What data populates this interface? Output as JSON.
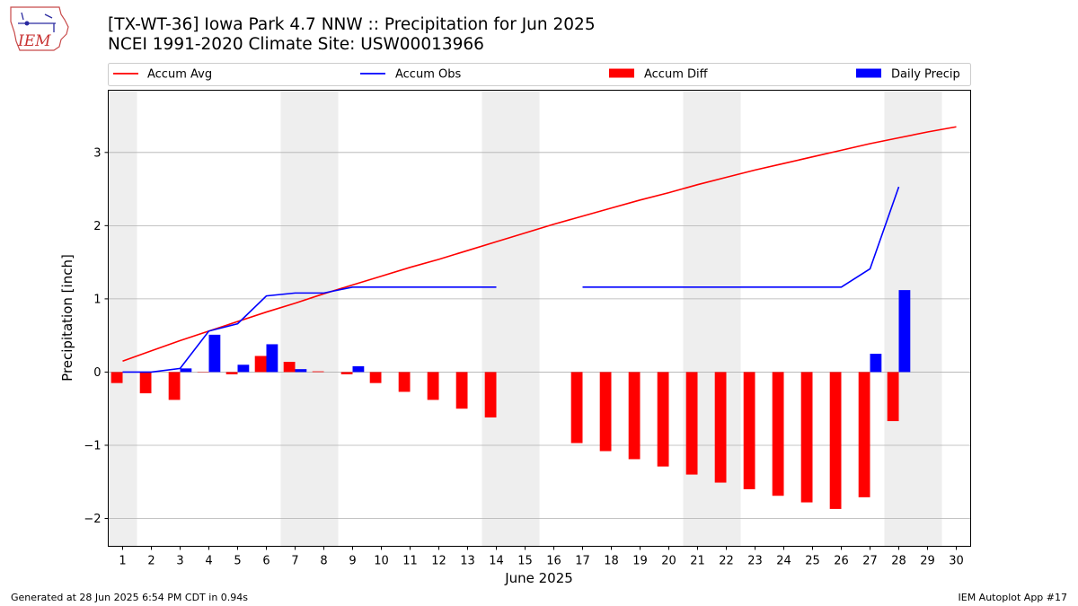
{
  "logo": {
    "text": "IEM"
  },
  "header": {
    "title": "[TX-WT-36] Iowa Park 4.7 NNW :: Precipitation for Jun 2025",
    "subtitle": "NCEI 1991-2020 Climate Site: USW00013966"
  },
  "footer": {
    "left": "Generated at 28 Jun 2025 6:54 PM CDT in 0.94s",
    "right": "IEM Autoplot App #17"
  },
  "colors": {
    "avg": "#ff0000",
    "obs": "#0000ff",
    "diff": "#ff0000",
    "daily": "#0000ff",
    "weekend": "#eeeeee",
    "grid": "#b0b0b0"
  },
  "chart_data": {
    "type": "bar",
    "xlabel": "June 2025",
    "ylabel": "Precipitation [inch]",
    "xlim": [
      0.5,
      30.5
    ],
    "ylim": [
      -2.38,
      3.85
    ],
    "yticks": [
      -2,
      -1,
      0,
      1,
      2,
      3
    ],
    "yticklabels": [
      "−2",
      "−1",
      "0",
      "1",
      "2",
      "3"
    ],
    "grid": true,
    "legend_position": "top",
    "categories": [
      "1",
      "2",
      "3",
      "4",
      "5",
      "6",
      "7",
      "8",
      "9",
      "10",
      "11",
      "12",
      "13",
      "14",
      "15",
      "16",
      "17",
      "18",
      "19",
      "20",
      "21",
      "22",
      "23",
      "24",
      "25",
      "26",
      "27",
      "28",
      "29",
      "30"
    ],
    "weekend_days": [
      1,
      7,
      8,
      14,
      15,
      21,
      22,
      28,
      29
    ],
    "series": [
      {
        "name": "Accum Avg",
        "kind": "line",
        "values": [
          0.15,
          0.29,
          0.43,
          0.56,
          0.69,
          0.82,
          0.94,
          1.07,
          1.19,
          1.31,
          1.43,
          1.54,
          1.66,
          1.78,
          1.9,
          2.02,
          2.13,
          2.24,
          2.35,
          2.45,
          2.56,
          2.66,
          2.76,
          2.85,
          2.94,
          3.03,
          3.12,
          3.2,
          3.28,
          3.35
        ]
      },
      {
        "name": "Accum Obs",
        "kind": "line",
        "values": [
          0.0,
          0.0,
          0.05,
          0.56,
          0.66,
          1.04,
          1.08,
          1.08,
          1.16,
          1.16,
          1.16,
          1.16,
          1.16,
          1.16,
          null,
          null,
          1.16,
          1.16,
          1.16,
          1.16,
          1.16,
          1.16,
          1.16,
          1.16,
          1.16,
          1.16,
          1.41,
          2.53,
          null,
          null
        ]
      },
      {
        "name": "Accum Diff",
        "kind": "bar",
        "values": [
          -0.15,
          -0.29,
          -0.38,
          0.0,
          -0.03,
          0.22,
          0.14,
          0.01,
          -0.03,
          -0.15,
          -0.27,
          -0.38,
          -0.5,
          -0.62,
          null,
          null,
          -0.97,
          -1.08,
          -1.19,
          -1.29,
          -1.4,
          -1.51,
          -1.6,
          -1.69,
          -1.78,
          -1.87,
          -1.71,
          -0.67,
          null,
          null
        ]
      },
      {
        "name": "Daily Precip",
        "kind": "bar",
        "values": [
          0.0,
          0.0,
          0.05,
          0.51,
          0.1,
          0.38,
          0.04,
          0.0,
          0.08,
          0.0,
          0.0,
          0.0,
          0.0,
          0.0,
          null,
          null,
          0.0,
          0.0,
          0.0,
          0.0,
          0.0,
          0.0,
          0.0,
          0.0,
          0.0,
          0.0,
          0.25,
          1.12,
          null,
          null
        ]
      }
    ]
  }
}
